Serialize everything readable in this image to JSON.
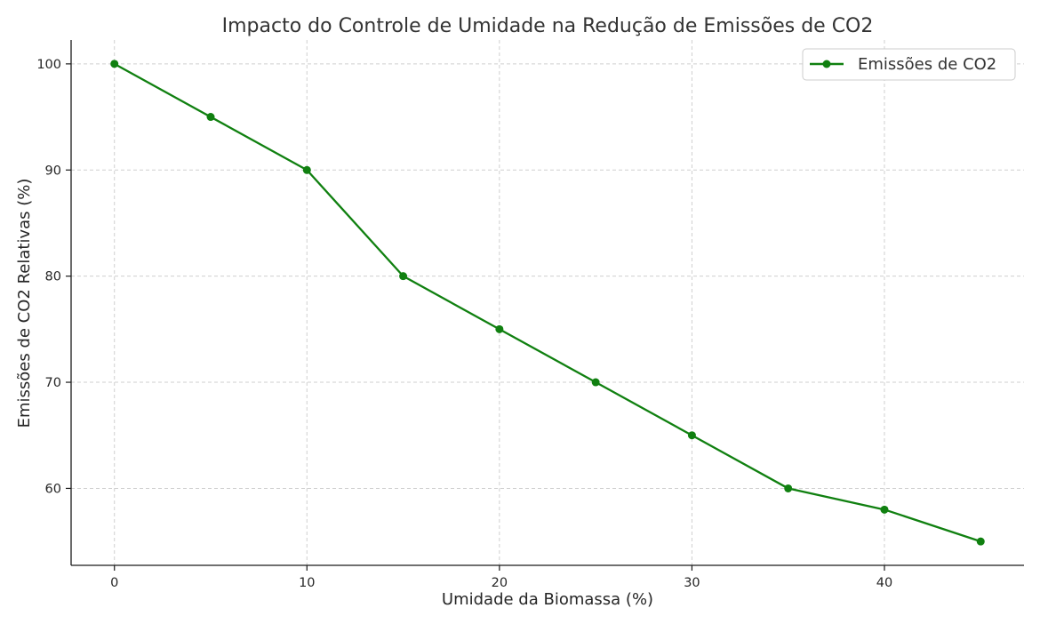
{
  "chart_data": {
    "type": "line",
    "title": "Impacto do Controle de Umidade na Redução de Emissões de CO2",
    "xlabel": "Umidade da Biomassa (%)",
    "ylabel": "Emissões de CO2 Relativas (%)",
    "x": [
      0,
      5,
      10,
      15,
      20,
      25,
      30,
      35,
      40,
      45
    ],
    "series": [
      {
        "name": "Emissões de CO2",
        "color": "#108010",
        "values": [
          100,
          95,
          90,
          80,
          75,
          70,
          65,
          60,
          58,
          55
        ]
      }
    ],
    "xlim": [
      -2.25,
      47.25
    ],
    "ylim": [
      52.75,
      102.25
    ],
    "xticks": [
      0,
      10,
      20,
      30,
      40
    ],
    "yticks": [
      60,
      70,
      80,
      90,
      100
    ],
    "grid": true,
    "legend_position": "top-right"
  }
}
